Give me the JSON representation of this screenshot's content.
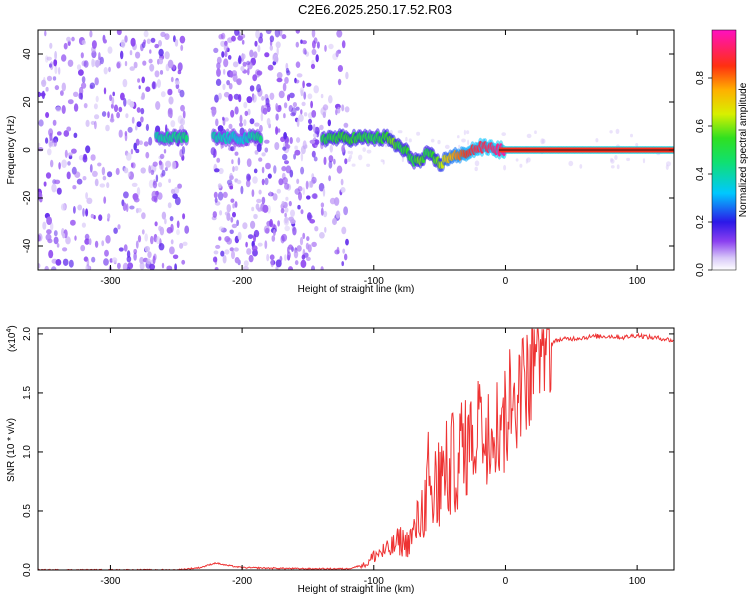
{
  "title": "C2E6.2025.250.17.52.R03",
  "chart_data": [
    {
      "type": "heatmap",
      "name": "spectrogram",
      "xlabel": "Height of straight line (km)",
      "ylabel": "Frequency (Hz)",
      "xlim": [
        -355,
        128
      ],
      "ylim": [
        -50,
        50
      ],
      "xticks": [
        -300,
        -200,
        -100,
        0,
        100
      ],
      "yticks": [
        -40,
        -20,
        0,
        20,
        40
      ],
      "colorbar": {
        "label": "Normalized spectral amplitude",
        "range": [
          0,
          1
        ],
        "ticks": [
          "0.0",
          "0.2",
          "0.4",
          "0.6",
          "0.8"
        ],
        "tick_values": [
          0,
          0.2,
          0.4,
          0.6,
          0.8
        ]
      },
      "noise_bands_km": [
        [
          -355,
          -242
        ],
        [
          -222,
          -142
        ],
        [
          -140,
          -120
        ]
      ],
      "ridge": {
        "x_km": [
          -265,
          -240,
          -222,
          -200,
          -185,
          -140,
          -120,
          -100,
          -90,
          -85,
          -80,
          -75,
          -70,
          -65,
          -60,
          -55,
          -50,
          -45,
          -40,
          -35,
          -30,
          -25,
          -20,
          -15,
          -10,
          -5,
          0,
          50,
          100,
          128
        ],
        "freq_hz": [
          5,
          5,
          5,
          5,
          5,
          5,
          5,
          5,
          5,
          3,
          1,
          -1,
          -4,
          -5,
          -2,
          -3,
          -6,
          -4,
          -2,
          -3,
          -1,
          0,
          1,
          1,
          1,
          0,
          0,
          0,
          0,
          0
        ],
        "amplitude": [
          0.4,
          0.45,
          0.4,
          0.35,
          0.45,
          0.5,
          0.55,
          0.5,
          0.55,
          0.6,
          0.5,
          0.55,
          0.5,
          0.6,
          0.5,
          0.55,
          0.6,
          0.7,
          0.75,
          0.8,
          0.85,
          0.88,
          0.9,
          0.9,
          0.92,
          0.95,
          0.98,
          1.0,
          1.0,
          1.0
        ]
      }
    },
    {
      "type": "line",
      "name": "snr",
      "xlabel": "Height of straight line (km)",
      "ylabel": "SNR (10 * v/v)",
      "yscale_label": "(x10",
      "yscale_exp": "4",
      "yscale_close": ")",
      "xlim": [
        -355,
        128
      ],
      "ylim": [
        0,
        2.05
      ],
      "xticks": [
        -300,
        -200,
        -100,
        0,
        100
      ],
      "yticks": [
        0.0,
        0.5,
        1.0,
        1.5,
        2.0
      ],
      "ytick_labels": [
        "0.0",
        "0.5",
        "1.0",
        "1.5",
        "2.0"
      ],
      "color": "#ee3333",
      "x": [
        -355,
        -300,
        -250,
        -232,
        -220,
        -212,
        -200,
        -150,
        -120,
        -105,
        -100,
        -95,
        -90,
        -85,
        -80,
        -75,
        -70,
        -65,
        -60,
        -57,
        -55,
        -50,
        -45,
        -40,
        -35,
        -30,
        -25,
        -20,
        -15,
        -10,
        -5,
        0,
        5,
        10,
        15,
        20,
        25,
        30,
        35,
        40,
        50,
        60,
        70,
        80,
        90,
        100,
        110,
        120,
        128
      ],
      "y": [
        0.0,
        0.0,
        0.0,
        0.02,
        0.06,
        0.04,
        0.02,
        0.01,
        0.01,
        0.05,
        0.12,
        0.15,
        0.16,
        0.2,
        0.25,
        0.22,
        0.3,
        0.45,
        0.6,
        0.75,
        0.55,
        0.7,
        0.8,
        0.9,
        0.95,
        1.05,
        1.1,
        1.2,
        1.15,
        1.3,
        1.2,
        1.25,
        1.4,
        1.5,
        1.6,
        1.7,
        1.8,
        1.88,
        1.92,
        1.95,
        1.96,
        1.97,
        1.98,
        1.98,
        1.97,
        1.99,
        1.97,
        1.96,
        1.94
      ]
    }
  ]
}
